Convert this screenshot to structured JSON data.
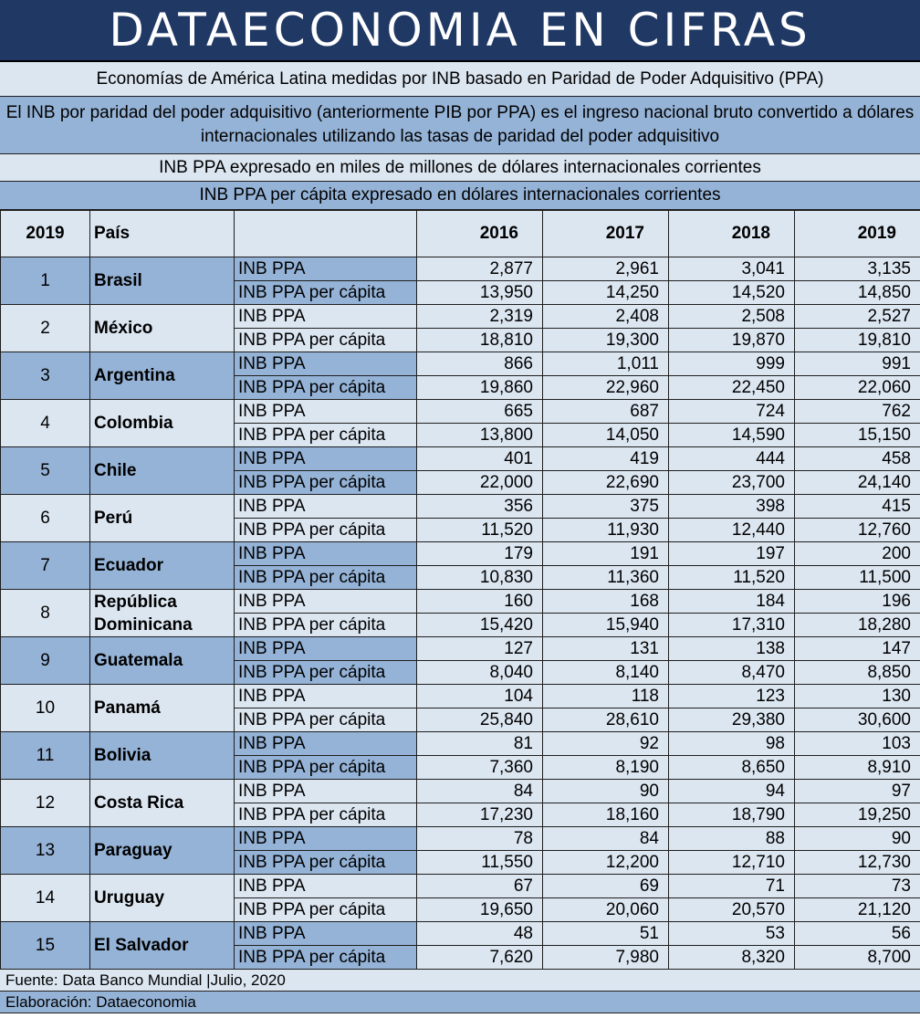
{
  "title": "DATAECONOMIA EN CIFRAS",
  "subtitle": "Economías de América Latina medidas por INB basado en Paridad de Poder Adquisitivo (PPA)",
  "definition": "El INB por paridad del poder adquisitivo (anteriormente PIB por PPA) es el ingreso nacional bruto convertido a dólares internacionales utilizando las tasas de paridad del poder adquisitivo",
  "note_total": "INB PPA expresado en miles de millones de dólares internacionales corrientes",
  "note_percapita": "INB PPA per cápita expresado en dólares internacionales corrientes",
  "table": {
    "headers": [
      "2019",
      "País",
      "",
      "2016",
      "2017",
      "2018",
      "2019"
    ],
    "metric_labels": [
      "INB PPA",
      "INB PPA per cápita"
    ],
    "rows": [
      {
        "rank": "1",
        "country": "Brasil",
        "total": [
          "2,877",
          "2,961",
          "3,041",
          "3,135"
        ],
        "percapita": [
          "13,950",
          "14,250",
          "14,520",
          "14,850"
        ]
      },
      {
        "rank": "2",
        "country": "México",
        "total": [
          "2,319",
          "2,408",
          "2,508",
          "2,527"
        ],
        "percapita": [
          "18,810",
          "19,300",
          "19,870",
          "19,810"
        ]
      },
      {
        "rank": "3",
        "country": "Argentina",
        "total": [
          "866",
          "1,011",
          "999",
          "991"
        ],
        "percapita": [
          "19,860",
          "22,960",
          "22,450",
          "22,060"
        ]
      },
      {
        "rank": "4",
        "country": "Colombia",
        "total": [
          "665",
          "687",
          "724",
          "762"
        ],
        "percapita": [
          "13,800",
          "14,050",
          "14,590",
          "15,150"
        ]
      },
      {
        "rank": "5",
        "country": "Chile",
        "total": [
          "401",
          "419",
          "444",
          "458"
        ],
        "percapita": [
          "22,000",
          "22,690",
          "23,700",
          "24,140"
        ]
      },
      {
        "rank": "6",
        "country": "Perú",
        "total": [
          "356",
          "375",
          "398",
          "415"
        ],
        "percapita": [
          "11,520",
          "11,930",
          "12,440",
          "12,760"
        ]
      },
      {
        "rank": "7",
        "country": "Ecuador",
        "total": [
          "179",
          "191",
          "197",
          "200"
        ],
        "percapita": [
          "10,830",
          "11,360",
          "11,520",
          "11,500"
        ]
      },
      {
        "rank": "8",
        "country": "República Dominicana",
        "total": [
          "160",
          "168",
          "184",
          "196"
        ],
        "percapita": [
          "15,420",
          "15,940",
          "17,310",
          "18,280"
        ]
      },
      {
        "rank": "9",
        "country": "Guatemala",
        "total": [
          "127",
          "131",
          "138",
          "147"
        ],
        "percapita": [
          "8,040",
          "8,140",
          "8,470",
          "8,850"
        ]
      },
      {
        "rank": "10",
        "country": "Panamá",
        "total": [
          "104",
          "118",
          "123",
          "130"
        ],
        "percapita": [
          "25,840",
          "28,610",
          "29,380",
          "30,600"
        ]
      },
      {
        "rank": "11",
        "country": "Bolivia",
        "total": [
          "81",
          "92",
          "98",
          "103"
        ],
        "percapita": [
          "7,360",
          "8,190",
          "8,650",
          "8,910"
        ]
      },
      {
        "rank": "12",
        "country": "Costa Rica",
        "total": [
          "84",
          "90",
          "94",
          "97"
        ],
        "percapita": [
          "17,230",
          "18,160",
          "18,790",
          "19,250"
        ]
      },
      {
        "rank": "13",
        "country": "Paraguay",
        "total": [
          "78",
          "84",
          "88",
          "90"
        ],
        "percapita": [
          "11,550",
          "12,200",
          "12,710",
          "12,730"
        ]
      },
      {
        "rank": "14",
        "country": "Uruguay",
        "total": [
          "67",
          "69",
          "71",
          "73"
        ],
        "percapita": [
          "19,650",
          "20,060",
          "20,570",
          "21,120"
        ]
      },
      {
        "rank": "15",
        "country": "El Salvador",
        "total": [
          "48",
          "51",
          "53",
          "56"
        ],
        "percapita": [
          "7,620",
          "7,980",
          "8,320",
          "8,700"
        ]
      }
    ]
  },
  "source": "Fuente: Data Banco Mundial |Julio, 2020",
  "credit": "Elaboración: Dataeconomia",
  "colors": {
    "title_bg": "#203864",
    "dark_band": "#95b3d7",
    "light_band": "#dce6f1"
  }
}
